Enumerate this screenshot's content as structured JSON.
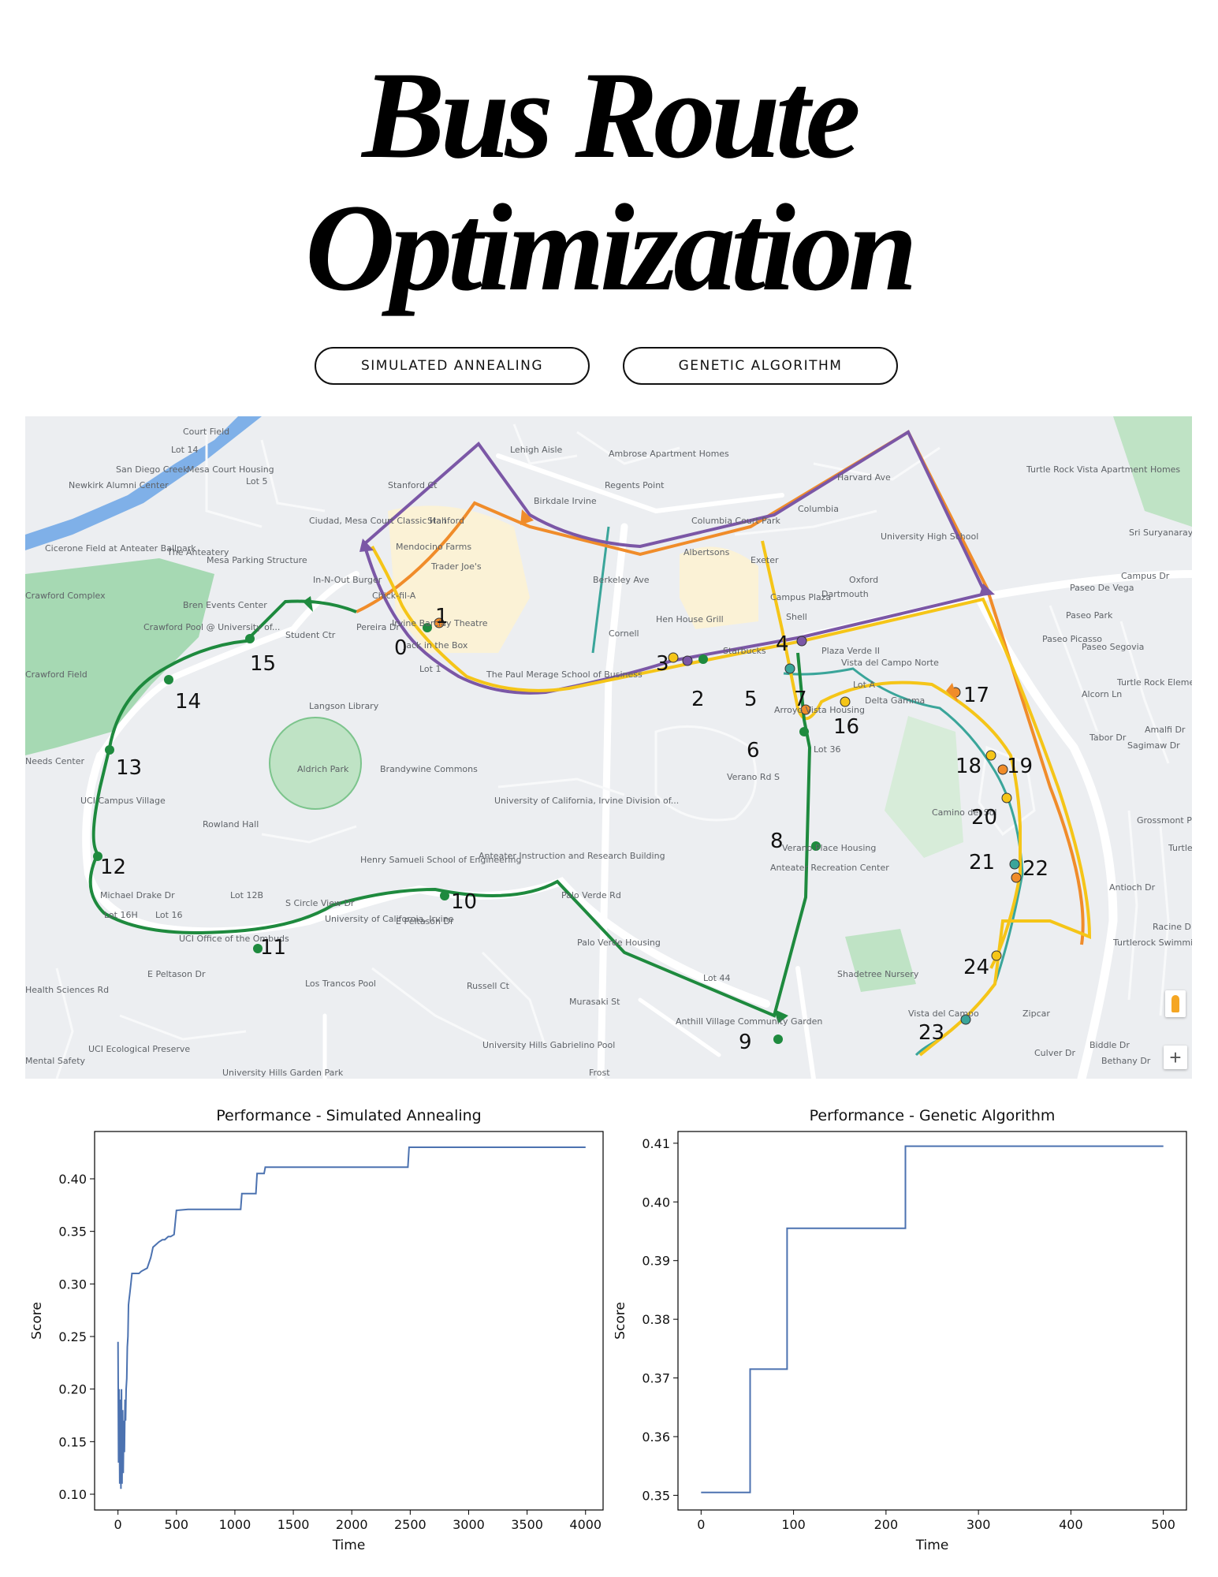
{
  "title": {
    "line1": "Bus Route",
    "line2": "Optimization"
  },
  "buttons": {
    "sa": "SIMULATED ANNEALING",
    "ga": "GENETIC ALGORITHM"
  },
  "colors": {
    "green_route": "#1e8a3e",
    "yellow_route": "#f5c518",
    "orange_route": "#f08c2a",
    "purple_route": "#7b57a6",
    "teal_route": "#3aa59a",
    "line_color": "#4c72b0"
  },
  "map": {
    "place_labels": [
      "Court Field",
      "Lot 14",
      "San Diego Creek",
      "Mesa Court Housing",
      "Lot 5",
      "Newkirk Alumni Center",
      "Lehigh Aisle",
      "Ambrose Apartment Homes",
      "Regents Point",
      "Birkdale Irvine",
      "Stanford",
      "Ciudad, Mesa Court Classic Hall",
      "Cicerone Field at Anteater Ballpark",
      "The Anteatery",
      "Mesa Parking Structure",
      "Mendocino Farms",
      "Trader Joe's",
      "In-N-Out Burger",
      "Bren Events Center",
      "Chick-fil-A",
      "Irvine Barclay Theatre",
      "Crawford Complex",
      "Crawford Pool @ University of...",
      "Student Ctr",
      "Jack in the Box",
      "Lot 1",
      "Crawford Field",
      "The Paul Merage School of Business",
      "Langson Library",
      "Aldrich Park",
      "Brandywine Commons",
      "Needs Center",
      "UCI Campus Village",
      "Rowland Hall",
      "University of California, Irvine Division of...",
      "Henry Samueli School of Engineering",
      "Anteater Instruction and Research Building",
      "Michael Drake Dr",
      "Lot 16H",
      "Lot 16",
      "Lot 12B",
      "UCI Office of the Ombuds",
      "University of California, Irvine",
      "E Peltason Dr",
      "Palo Verde Rd",
      "Palo Verde Housing",
      "Los Trancos Pool",
      "Russell Ct",
      "Murasaki St",
      "Anthill Village Community Garden",
      "University Hills Gabrielino Pool",
      "UCI Ecological Preserve",
      "University Hills Garden Park",
      "Frost",
      "Columbia Court Park",
      "Columbia",
      "University High School",
      "Exeter",
      "Oxford",
      "Albertsons",
      "Campus Plaza",
      "Dartmouth",
      "Hen House Grill",
      "Cornell",
      "Starbucks",
      "Plaza Verde II",
      "Shell",
      "Vista del Campo Norte",
      "Lot A",
      "Delta Gamma",
      "Arroyo Vista Housing",
      "Lot 36",
      "Verano Place Housing",
      "Anteater Recreation Center",
      "Camino del Sol",
      "Turtle Rock Vista Apartment Homes",
      "Sri Suryanarayana Mandiram",
      "Campus Dr",
      "Paseo De Vega",
      "Paseo Park",
      "Paseo Segovia",
      "Alcorn Ln",
      "Turtle Rock Elementary School",
      "Amalfi Dr",
      "Grossmont Park",
      "Turtle Rock Dr",
      "Turtlerock Swimming Pool",
      "Shadetree Nursery",
      "Lot 44",
      "Vista del Campo",
      "Zipcar",
      "Culver Dr",
      "Biddle Dr",
      "Bethany Dr",
      "Racine Dr",
      "Antioch Dr",
      "Health Sciences Rd",
      "Mental Safety",
      "E Peltason Dr",
      "Verano Rd S",
      "Berkeley Ave",
      "Harvard Ave",
      "Stanford Ct",
      "Pereira Dr",
      "S Circle View Dr",
      "Paseo Picasso",
      "Tabor Dr",
      "Sagimaw Dr"
    ],
    "stop_labels": [
      "0",
      "1",
      "2",
      "3",
      "4",
      "5",
      "6",
      "7",
      "8",
      "9",
      "10",
      "11",
      "12",
      "13",
      "14",
      "15",
      "16",
      "17",
      "18",
      "19",
      "20",
      "21",
      "22",
      "23",
      "24"
    ],
    "zoom_in": "+"
  },
  "chart_data": [
    {
      "type": "line",
      "title": "Performance - Simulated Annealing",
      "xlabel": "Time",
      "ylabel": "Score",
      "xlim": [
        -200,
        4150
      ],
      "ylim": [
        0.085,
        0.445
      ],
      "xticks": [
        0,
        500,
        1000,
        1500,
        2000,
        2500,
        3000,
        3500,
        4000
      ],
      "yticks": [
        0.1,
        0.15,
        0.2,
        0.25,
        0.3,
        0.35,
        0.4
      ],
      "series": [
        {
          "x": [
            0,
            5,
            10,
            15,
            20,
            25,
            30,
            35,
            40,
            45,
            50,
            55,
            60,
            65,
            70,
            75,
            80,
            85,
            90,
            95,
            100,
            110,
            120,
            130,
            140,
            150,
            160,
            170,
            180,
            200,
            250,
            280,
            290,
            300,
            330,
            350,
            380,
            400,
            430,
            450,
            480,
            500,
            600,
            1050,
            1060,
            1180,
            1190,
            1250,
            1260,
            2480,
            2490,
            4000
          ],
          "y": [
            0.245,
            0.13,
            0.2,
            0.11,
            0.19,
            0.105,
            0.2,
            0.11,
            0.18,
            0.12,
            0.17,
            0.14,
            0.19,
            0.17,
            0.2,
            0.21,
            0.24,
            0.25,
            0.28,
            0.285,
            0.29,
            0.3,
            0.31,
            0.31,
            0.31,
            0.31,
            0.31,
            0.31,
            0.31,
            0.312,
            0.315,
            0.325,
            0.33,
            0.335,
            0.338,
            0.34,
            0.342,
            0.342,
            0.345,
            0.345,
            0.347,
            0.37,
            0.371,
            0.371,
            0.386,
            0.386,
            0.405,
            0.405,
            0.411,
            0.411,
            0.43,
            0.43
          ]
        }
      ]
    },
    {
      "type": "line",
      "title": "Performance - Genetic Algorithm",
      "xlabel": "Time",
      "ylabel": "Score",
      "xlim": [
        -25,
        525
      ],
      "ylim": [
        0.3475,
        0.412
      ],
      "xticks": [
        0,
        100,
        200,
        300,
        400,
        500
      ],
      "yticks": [
        0.35,
        0.36,
        0.37,
        0.38,
        0.39,
        0.4,
        0.41
      ],
      "series": [
        {
          "x": [
            0,
            53,
            53,
            93,
            93,
            221,
            221,
            500
          ],
          "y": [
            0.3505,
            0.3505,
            0.3715,
            0.3715,
            0.3955,
            0.3955,
            0.4095,
            0.4095
          ]
        }
      ]
    }
  ]
}
